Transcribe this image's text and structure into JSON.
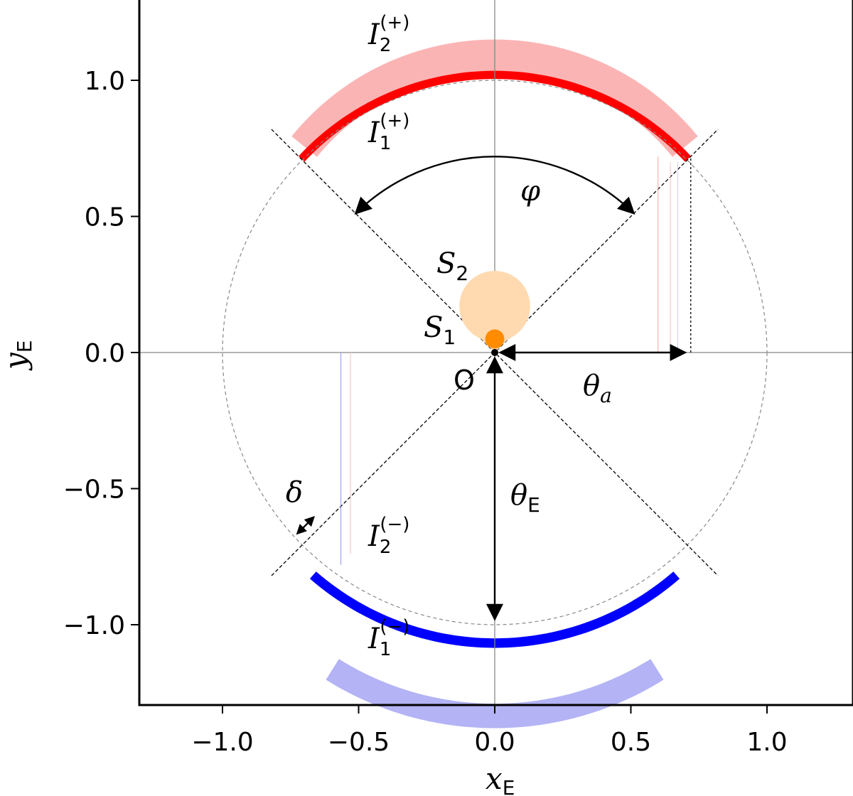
{
  "axes": {
    "xlabel_main": "x",
    "xlabel_sub": "E",
    "ylabel_main": "y",
    "ylabel_sub": "E",
    "xlim": [
      -1.3,
      1.3
    ],
    "ylim": [
      -1.3,
      1.3
    ],
    "xticks": [
      {
        "value": -1.0,
        "label": "−1.0"
      },
      {
        "value": -0.5,
        "label": "−0.5"
      },
      {
        "value": 0.0,
        "label": "0.0"
      },
      {
        "value": 0.5,
        "label": "0.5"
      },
      {
        "value": 1.0,
        "label": "1.0"
      }
    ],
    "yticks": [
      {
        "value": 1.0,
        "label": "1.0"
      },
      {
        "value": 0.5,
        "label": "0.5"
      },
      {
        "value": 0.0,
        "label": "0.0"
      },
      {
        "value": -0.5,
        "label": "−0.5"
      },
      {
        "value": -1.0,
        "label": "−1.0"
      }
    ]
  },
  "geometry": {
    "einstein_radius": 1.0,
    "wedge_half_angle_deg": 45,
    "theta_a": 0.72,
    "source_small": {
      "x": 0.0,
      "y": 0.05,
      "r": 0.035
    },
    "source_large": {
      "x": 0.0,
      "y": 0.17,
      "r": 0.13
    }
  },
  "images": {
    "upper_outer": {
      "center_y": 0.19,
      "inner_r": 0.84,
      "outer_r": 0.96,
      "half_angle_deg": 51,
      "color": "#fbb4b4"
    },
    "upper_inner": {
      "center_y": 0.05,
      "inner_r": 0.955,
      "outer_r": 0.985,
      "half_angle_deg": 47,
      "color": "#ff0000"
    },
    "lower_outer": {
      "center_y": 0.21,
      "inner_r": 1.08,
      "outer_r": 1.17,
      "half_angle_deg": 32,
      "color": "#b3b3f5"
    },
    "lower_inner": {
      "center_y": 0.05,
      "inner_r": 1.0,
      "outer_r": 1.035,
      "half_angle_deg": 41,
      "color": "#0000ff"
    }
  },
  "colors": {
    "source_small": "#ff8c00",
    "source_large": "#ffdab0",
    "circle": "#888888",
    "axis_line": "#888888"
  },
  "labels": {
    "I2_plus_main": "I",
    "I2_plus_sub": "2",
    "I2_plus_sup": "(+)",
    "I1_plus_main": "I",
    "I1_plus_sub": "1",
    "I1_plus_sup": "(+)",
    "I2_minus_main": "I",
    "I2_minus_sub": "2",
    "I2_minus_sup": "(−)",
    "I1_minus_main": "I",
    "I1_minus_sub": "1",
    "I1_minus_sup": "(−)",
    "S1_main": "S",
    "S1_sub": "1",
    "S2_main": "S",
    "S2_sub": "2",
    "phi": "φ",
    "delta": "δ",
    "origin": "O",
    "theta_a_main": "θ",
    "theta_a_sub": "a",
    "theta_E_main": "θ",
    "theta_E_sub": "E"
  }
}
